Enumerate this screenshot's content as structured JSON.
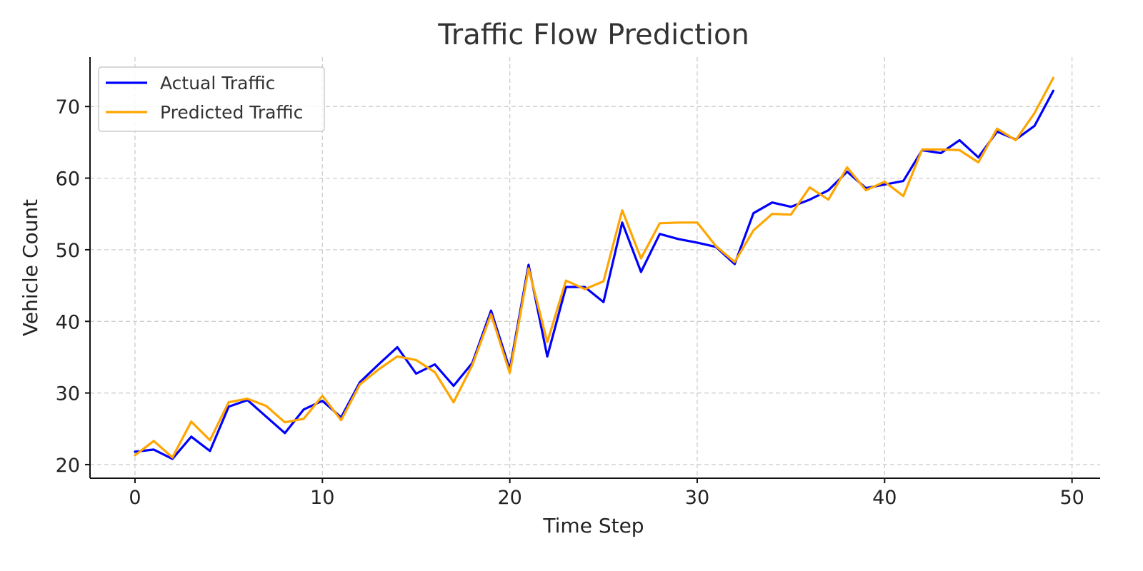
{
  "chart_data": {
    "type": "line",
    "title": "Traffic Flow Prediction",
    "xlabel": "Time Step",
    "ylabel": "Vehicle Count",
    "xlim": [
      -2.4,
      51.5
    ],
    "ylim": [
      18.1,
      76.9
    ],
    "xticks": [
      0,
      10,
      20,
      30,
      40,
      50
    ],
    "yticks": [
      20,
      30,
      40,
      50,
      60,
      70
    ],
    "grid": true,
    "legend_position": "top-left",
    "x": [
      0,
      1,
      2,
      3,
      4,
      5,
      6,
      7,
      8,
      9,
      10,
      11,
      12,
      13,
      14,
      15,
      16,
      17,
      18,
      19,
      20,
      21,
      22,
      23,
      24,
      25,
      26,
      27,
      28,
      29,
      30,
      31,
      32,
      33,
      34,
      35,
      36,
      37,
      38,
      39,
      40,
      41,
      42,
      43,
      44,
      45,
      46,
      47,
      48,
      49
    ],
    "series": [
      {
        "name": "Actual Traffic",
        "color": "#0000ff",
        "values": [
          21.8,
          22.1,
          20.8,
          23.9,
          21.9,
          28.1,
          29.0,
          26.7,
          24.4,
          27.7,
          28.9,
          26.6,
          31.5,
          34.0,
          36.4,
          32.7,
          34.0,
          31.0,
          34.2,
          41.5,
          33.3,
          47.9,
          35.1,
          44.8,
          44.8,
          42.7,
          53.8,
          46.9,
          52.2,
          51.5,
          51.0,
          50.4,
          48.0,
          55.1,
          56.6,
          56.0,
          57.0,
          58.3,
          60.9,
          58.6,
          59.1,
          59.6,
          63.9,
          63.5,
          65.3,
          62.9,
          66.5,
          65.4,
          67.3,
          72.2
        ]
      },
      {
        "name": "Predicted Traffic",
        "color": "#ffa500",
        "values": [
          21.3,
          23.3,
          21.0,
          26.0,
          23.4,
          28.7,
          29.2,
          28.2,
          25.9,
          26.4,
          29.6,
          26.2,
          31.2,
          33.3,
          35.1,
          34.6,
          32.9,
          28.7,
          33.9,
          41.0,
          32.8,
          47.4,
          37.1,
          45.7,
          44.5,
          45.6,
          55.5,
          48.8,
          53.7,
          53.8,
          53.8,
          50.5,
          48.3,
          52.7,
          55.0,
          54.9,
          58.7,
          57.0,
          61.5,
          58.3,
          59.5,
          57.5,
          64.0,
          64.0,
          63.9,
          62.2,
          66.9,
          65.3,
          69.1,
          74.0
        ]
      }
    ]
  }
}
